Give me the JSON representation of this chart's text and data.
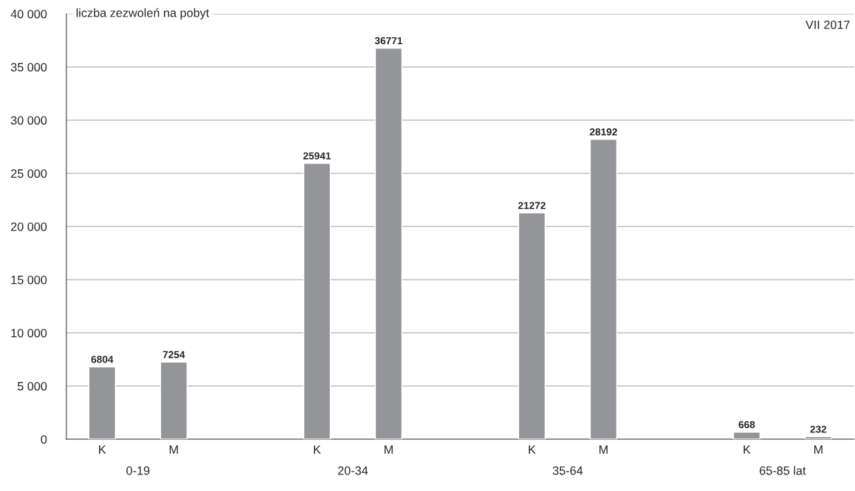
{
  "chart_data": {
    "type": "bar",
    "ylabel": "liczba zezwoleń na pobyt",
    "subtitle": "VII 2017",
    "categories": [
      "K",
      "M",
      null,
      "K",
      "M",
      null,
      "K",
      "M",
      null,
      "K",
      "M"
    ],
    "values": [
      6804,
      7254,
      null,
      25941,
      36771,
      null,
      21272,
      28192,
      null,
      668,
      232
    ],
    "color": "#939598",
    "data_labels": true,
    "annotations": [
      "0-19",
      "20-34",
      "35-64",
      "65-85 lat"
    ],
    "ylim": [
      0,
      40000
    ],
    "yticks": [
      {
        "value": 0,
        "label": "0"
      },
      {
        "value": 5000,
        "label": "5 000"
      },
      {
        "value": 10000,
        "label": "10 000"
      },
      {
        "value": 15000,
        "label": "15 000"
      },
      {
        "value": 20000,
        "label": "20 000"
      },
      {
        "value": 25000,
        "label": "25 000"
      },
      {
        "value": 30000,
        "label": "30 000"
      },
      {
        "value": 35000,
        "label": "35 000"
      },
      {
        "value": 40000,
        "label": "40 000"
      }
    ],
    "grid": "y"
  }
}
